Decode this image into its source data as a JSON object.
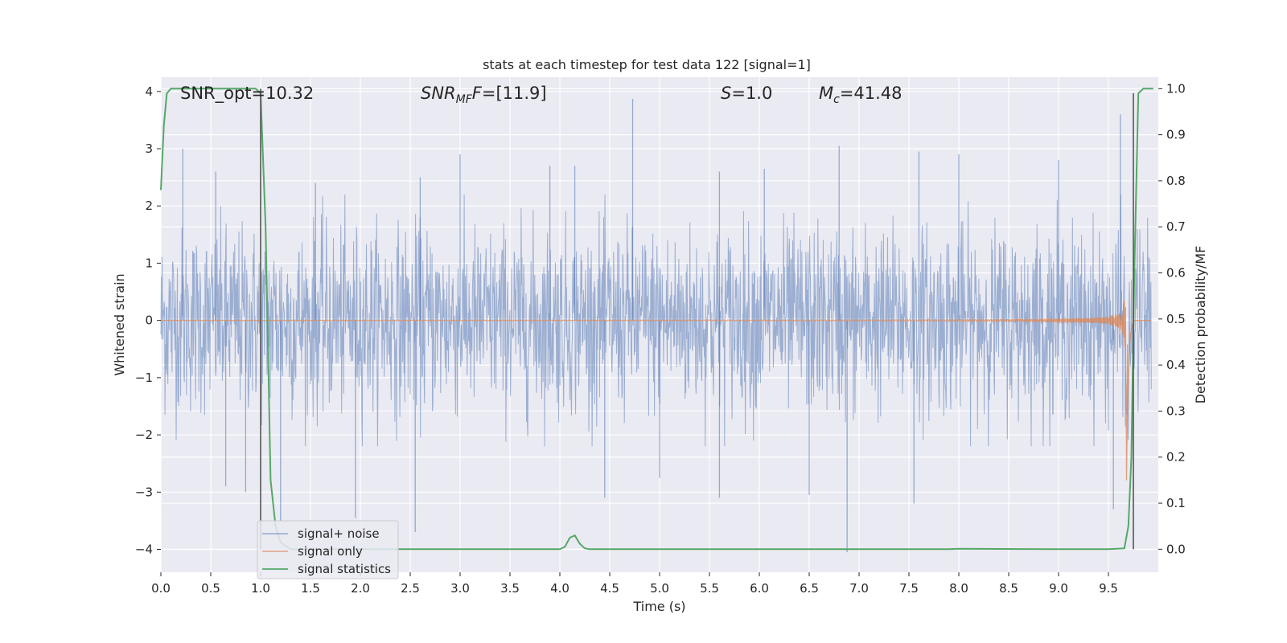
{
  "chart_data": {
    "type": "line",
    "title": "stats at each timestep for test data 122 [signal=1]",
    "xlabel": "Time (s)",
    "ylabel_left": "Whitened strain",
    "ylabel_right": "Detection probability/MF",
    "xlim": [
      0.0,
      10.0
    ],
    "ylim_left": [
      -4.4,
      4.25
    ],
    "ylim_right": [
      -0.05,
      1.025
    ],
    "x_ticks": [
      "0.0",
      "0.5",
      "1.0",
      "1.5",
      "2.0",
      "2.5",
      "3.0",
      "3.5",
      "4.0",
      "4.5",
      "5.0",
      "5.5",
      "6.0",
      "6.5",
      "7.0",
      "7.5",
      "8.0",
      "8.5",
      "9.0",
      "9.5"
    ],
    "x_tick_values": [
      0.0,
      0.5,
      1.0,
      1.5,
      2.0,
      2.5,
      3.0,
      3.5,
      4.0,
      4.5,
      5.0,
      5.5,
      6.0,
      6.5,
      7.0,
      7.5,
      8.0,
      8.5,
      9.0,
      9.5
    ],
    "y_ticks_left": [
      "4",
      "3",
      "2",
      "1",
      "0",
      "−1",
      "−2",
      "−3",
      "−4"
    ],
    "y_tick_values_left": [
      4,
      3,
      2,
      1,
      0,
      -1,
      -2,
      -3,
      -4
    ],
    "y_ticks_right": [
      "1.0",
      "0.9",
      "0.8",
      "0.7",
      "0.6",
      "0.5",
      "0.4",
      "0.3",
      "0.2",
      "0.1",
      "0.0"
    ],
    "y_tick_values_right": [
      1.0,
      0.9,
      0.8,
      0.7,
      0.6,
      0.5,
      0.4,
      0.3,
      0.2,
      0.1,
      0.0
    ],
    "grid": true,
    "legend_position": "lower-left",
    "series": [
      {
        "name": "signal+ noise",
        "axis": "left",
        "color": "#4c72b0",
        "description_values": {
          "typical_range": [
            -1.8,
            1.8
          ],
          "max_peak": 3.87,
          "min_peak": -4.05
        },
        "peaks": [
          {
            "x": 0.22,
            "y": 3.0
          },
          {
            "x": 0.55,
            "y": 2.6
          },
          {
            "x": 1.55,
            "y": 2.4
          },
          {
            "x": 2.6,
            "y": 2.5
          },
          {
            "x": 3.0,
            "y": 2.9
          },
          {
            "x": 3.9,
            "y": 2.7
          },
          {
            "x": 4.15,
            "y": 2.7
          },
          {
            "x": 4.73,
            "y": 3.87
          },
          {
            "x": 5.6,
            "y": 2.6
          },
          {
            "x": 6.05,
            "y": 2.65
          },
          {
            "x": 6.8,
            "y": 3.05
          },
          {
            "x": 7.6,
            "y": 2.95
          },
          {
            "x": 8.0,
            "y": 2.9
          },
          {
            "x": 9.0,
            "y": 2.8
          },
          {
            "x": 9.62,
            "y": 3.6
          },
          {
            "x": 0.65,
            "y": -2.9
          },
          {
            "x": 0.85,
            "y": -3.0
          },
          {
            "x": 1.2,
            "y": -3.5
          },
          {
            "x": 1.95,
            "y": -3.45
          },
          {
            "x": 2.55,
            "y": -3.7
          },
          {
            "x": 4.45,
            "y": -3.1
          },
          {
            "x": 5.0,
            "y": -2.75
          },
          {
            "x": 5.6,
            "y": -3.1
          },
          {
            "x": 6.5,
            "y": -3.05
          },
          {
            "x": 6.88,
            "y": -4.05
          },
          {
            "x": 7.55,
            "y": -3.2
          },
          {
            "x": 9.55,
            "y": -3.3
          }
        ]
      },
      {
        "name": "signal only",
        "axis": "left",
        "color": "#dd8452",
        "chirp": {
          "flat_until": 6.0,
          "merger_time": 9.68,
          "peak_amplitude": 3.4,
          "ringdown_end": 9.75
        }
      },
      {
        "name": "signal statistics",
        "axis": "right",
        "color": "#55a868",
        "x": [
          0.0,
          0.03,
          0.06,
          0.1,
          0.2,
          0.5,
          0.8,
          0.95,
          1.0,
          1.05,
          1.1,
          1.15,
          1.2,
          1.3,
          2.0,
          3.0,
          4.0,
          4.05,
          4.1,
          4.15,
          4.2,
          4.25,
          4.3,
          5.0,
          6.0,
          7.0,
          7.9,
          8.0,
          9.0,
          9.5,
          9.66,
          9.7,
          9.73,
          9.76,
          9.8,
          9.85,
          9.9,
          9.95
        ],
        "values": [
          0.78,
          0.92,
          0.99,
          1.0,
          1.0,
          1.0,
          1.0,
          1.0,
          0.99,
          0.7,
          0.15,
          0.05,
          0.015,
          0.0,
          0.0,
          0.0,
          0.0,
          0.005,
          0.025,
          0.03,
          0.012,
          0.002,
          0.0,
          0.0,
          0.0,
          0.0,
          0.0,
          0.001,
          0.0,
          0.0,
          0.002,
          0.05,
          0.2,
          0.6,
          0.99,
          1.0,
          1.0,
          1.0
        ]
      }
    ],
    "vertical_lines": [
      {
        "x": 1.0,
        "axis": "right",
        "from": 0.0,
        "to": 1.0,
        "color": "#555555"
      },
      {
        "x": 9.75,
        "axis": "right",
        "from": 0.0,
        "to": 0.99,
        "color": "#555555"
      }
    ],
    "annotations": [
      {
        "text_plain": "SNR_opt=10.32"
      },
      {
        "text_italic": "SNR",
        "text_sub": "MF",
        "text_rest_italic": "F",
        "text_tail": "=[11.9]"
      },
      {
        "text_italic": "S",
        "text_tail": "=1.0"
      },
      {
        "text_italic": "M",
        "text_sub": "c",
        "text_tail": "=41.48"
      }
    ]
  }
}
